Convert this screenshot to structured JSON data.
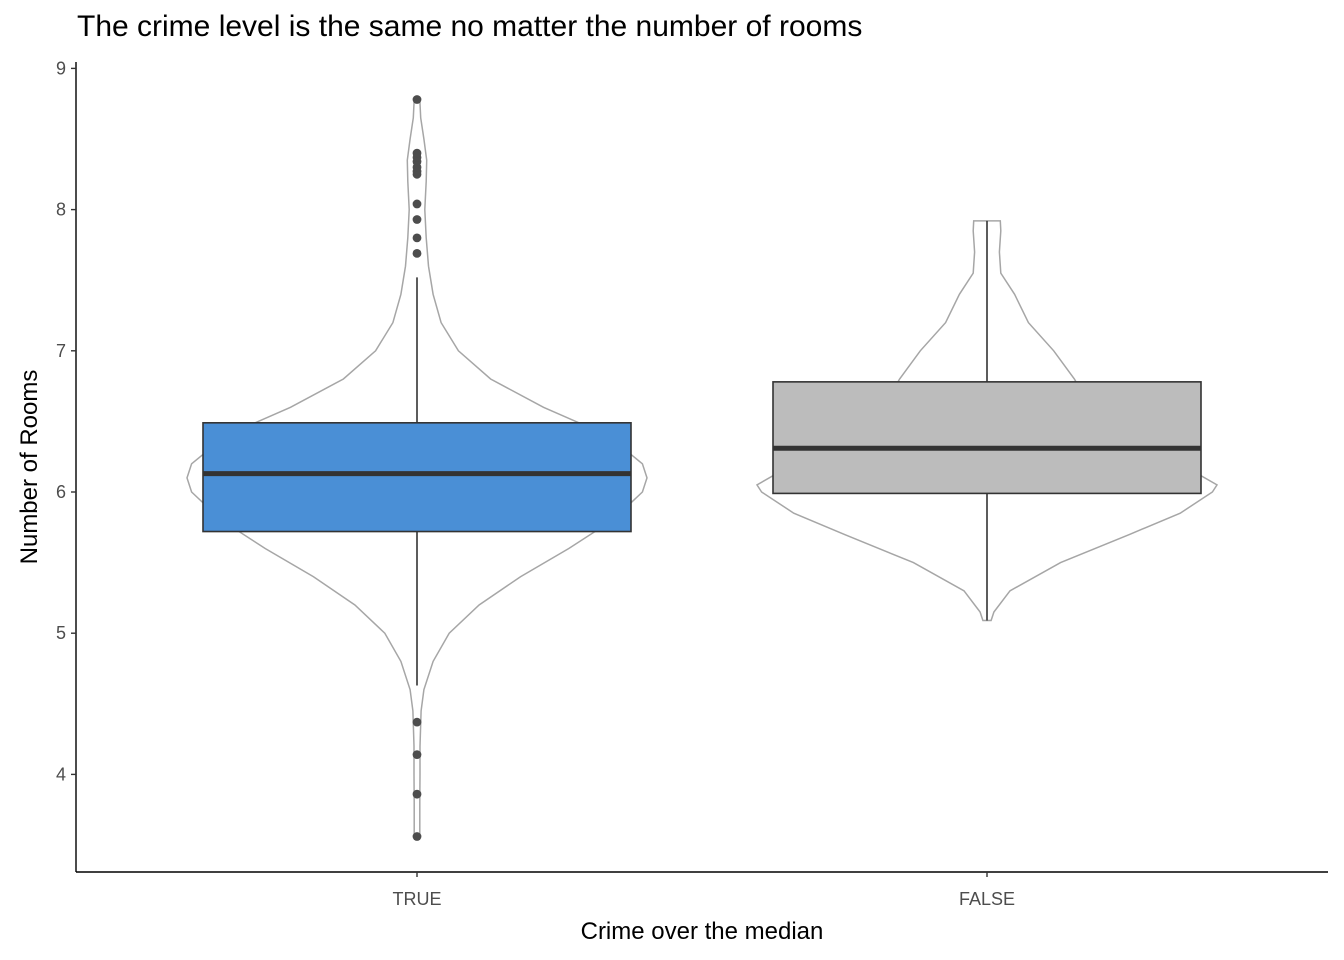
{
  "chart_data": {
    "type": "boxplot",
    "title": "The crime level is the same no matter the number of rooms",
    "xlabel": "Crime over the median",
    "ylabel": "Number of Rooms",
    "ylim": [
      3.3,
      9.05
    ],
    "yticks": [
      4,
      5,
      6,
      7,
      8,
      9
    ],
    "grid": false,
    "categories": [
      "TRUE",
      "FALSE"
    ],
    "colors": {
      "fills": [
        "#4a8fd6",
        "#bcbcbc"
      ],
      "violin": "#a6a6a6",
      "outlier": "#4d4d4d",
      "line": "#333333"
    },
    "boxes": [
      {
        "category": "TRUE",
        "q1": 5.72,
        "median": 6.13,
        "q3": 6.49,
        "whisker_low": 4.63,
        "whisker_high": 7.52,
        "outliers": [
          3.56,
          3.86,
          4.14,
          4.37,
          7.69,
          7.8,
          7.93,
          8.04,
          8.25,
          8.27,
          8.3,
          8.34,
          8.37,
          8.4,
          8.78
        ]
      },
      {
        "category": "FALSE",
        "q1": 5.99,
        "median": 6.31,
        "q3": 6.78,
        "whisker_low": 5.09,
        "whisker_high": 7.92,
        "outliers": []
      }
    ],
    "violins": [
      {
        "category": "TRUE",
        "ymin": 3.56,
        "ymax": 8.78,
        "profile": [
          [
            3.56,
            0.012
          ],
          [
            3.8,
            0.012
          ],
          [
            4.0,
            0.013
          ],
          [
            4.2,
            0.013
          ],
          [
            4.45,
            0.018
          ],
          [
            4.6,
            0.03
          ],
          [
            4.8,
            0.07
          ],
          [
            5.0,
            0.14
          ],
          [
            5.2,
            0.27
          ],
          [
            5.4,
            0.45
          ],
          [
            5.6,
            0.66
          ],
          [
            5.8,
            0.85
          ],
          [
            6.0,
            0.98
          ],
          [
            6.1,
            1.0
          ],
          [
            6.2,
            0.98
          ],
          [
            6.4,
            0.83
          ],
          [
            6.6,
            0.55
          ],
          [
            6.8,
            0.32
          ],
          [
            7.0,
            0.18
          ],
          [
            7.2,
            0.105
          ],
          [
            7.4,
            0.07
          ],
          [
            7.6,
            0.05
          ],
          [
            7.8,
            0.04
          ],
          [
            8.0,
            0.034
          ],
          [
            8.2,
            0.04
          ],
          [
            8.35,
            0.042
          ],
          [
            8.5,
            0.03
          ],
          [
            8.65,
            0.016
          ],
          [
            8.78,
            0.012
          ]
        ]
      },
      {
        "category": "FALSE",
        "ymin": 5.09,
        "ymax": 7.92,
        "profile": [
          [
            5.09,
            0.018
          ],
          [
            5.15,
            0.03
          ],
          [
            5.3,
            0.1
          ],
          [
            5.5,
            0.32
          ],
          [
            5.7,
            0.62
          ],
          [
            5.85,
            0.84
          ],
          [
            6.0,
            0.98
          ],
          [
            6.05,
            1.0
          ],
          [
            6.2,
            0.84
          ],
          [
            6.4,
            0.58
          ],
          [
            6.6,
            0.45
          ],
          [
            6.8,
            0.38
          ],
          [
            7.0,
            0.29
          ],
          [
            7.2,
            0.18
          ],
          [
            7.4,
            0.12
          ],
          [
            7.55,
            0.06
          ],
          [
            7.7,
            0.054
          ],
          [
            7.85,
            0.06
          ],
          [
            7.92,
            0.058
          ]
        ]
      }
    ]
  }
}
